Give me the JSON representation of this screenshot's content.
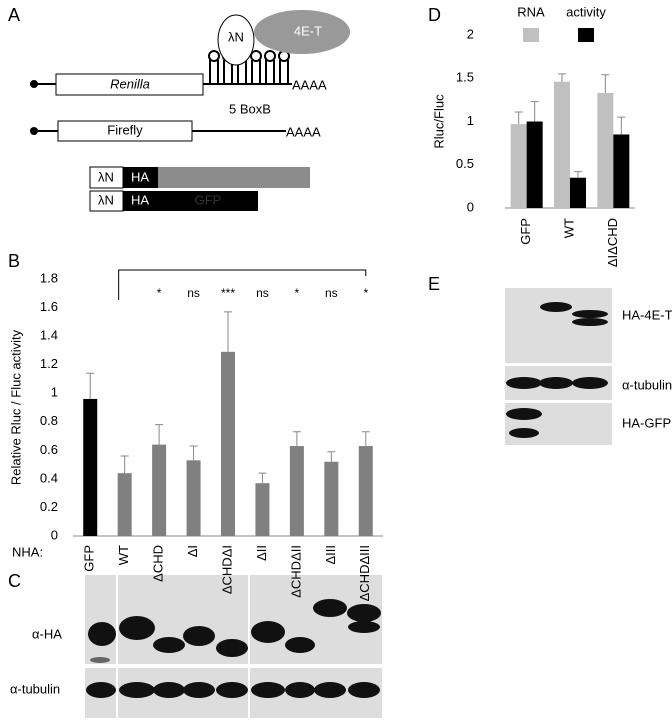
{
  "panel_labels": [
    "A",
    "B",
    "C",
    "D",
    "E"
  ],
  "diagram": {
    "lambda_n": "λN",
    "protein": "4E-T",
    "reporter": "Renilla",
    "reporter_tail": "AAAA",
    "boxb": "5 BoxB",
    "control": "Firefly",
    "control_tail": "AAAA",
    "constructs": [
      {
        "tag1": "λN",
        "tag2": "HA"
      },
      {
        "tag1": "λN",
        "tag2": "HA",
        "fusion": "GFP"
      }
    ]
  },
  "chart_data": [
    {
      "type": "bar",
      "ylabel": "Relative Rluc / Fluc activity",
      "x_label": "NHA:",
      "categories": [
        "GFP",
        "WT",
        "ΔCHD",
        "ΔI",
        "ΔCHDΔI",
        "ΔII",
        "ΔCHDΔII",
        "ΔIII",
        "ΔCHDΔIII"
      ],
      "values": [
        0.96,
        0.44,
        0.64,
        0.53,
        1.29,
        0.37,
        0.63,
        0.52,
        0.63
      ],
      "errors": [
        0.18,
        0.12,
        0.14,
        0.1,
        0.28,
        0.07,
        0.1,
        0.07,
        0.1
      ],
      "colors": [
        "#000000",
        "#808080",
        "#808080",
        "#808080",
        "#808080",
        "#808080",
        "#808080",
        "#808080",
        "#808080"
      ],
      "significance": [
        null,
        null,
        "*",
        "ns",
        "***",
        "ns",
        "*",
        "ns",
        "*"
      ],
      "ylim": [
        0,
        1.8
      ],
      "yticks": [
        0,
        0.2,
        0.4,
        0.6,
        0.8,
        1,
        1.2,
        1.4,
        1.6,
        1.8
      ]
    },
    {
      "type": "bar",
      "ylabel": "Rluc/Fluc",
      "categories": [
        "GFP",
        "WT",
        "ΔIΔCHD"
      ],
      "series": [
        {
          "name": "RNA",
          "color": "#c0c0c0",
          "values": [
            0.97,
            1.46,
            1.33
          ],
          "errors": [
            0.14,
            0.09,
            0.21
          ]
        },
        {
          "name": "activity",
          "color": "#000000",
          "values": [
            1.0,
            0.35,
            0.85
          ],
          "errors": [
            0.23,
            0.07,
            0.2
          ]
        }
      ],
      "ylim": [
        0,
        2
      ],
      "yticks": [
        0,
        0.5,
        1,
        1.5,
        2
      ]
    }
  ],
  "blot_c": {
    "rows": [
      "α-HA",
      "α-tubulin"
    ]
  },
  "blot_e": {
    "rows": [
      "HA-4E-T",
      "α-tubulin",
      "HA-GFP"
    ]
  }
}
